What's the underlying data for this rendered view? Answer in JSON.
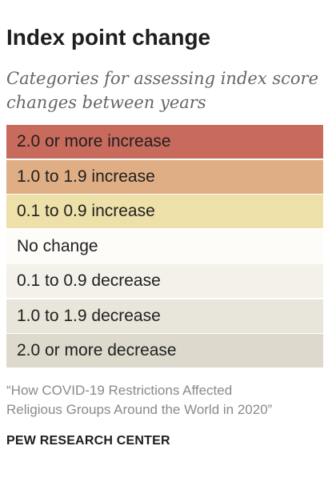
{
  "header": {
    "title": "Index point change",
    "subtitle_line1": "Categories for assessing index score",
    "subtitle_line2": "changes between years"
  },
  "legend": {
    "items": [
      {
        "label": "2.0 or more increase",
        "color": "#c86b5c"
      },
      {
        "label": "1.0 to 1.9 increase",
        "color": "#dfae84"
      },
      {
        "label": "0.1 to 0.9 increase",
        "color": "#ede0a8"
      },
      {
        "label": "No change",
        "color": "#fdfcf9"
      },
      {
        "label": "0.1 to 0.9 decrease",
        "color": "#f3f1ea"
      },
      {
        "label": "1.0 to 1.9 decrease",
        "color": "#e8e5da"
      },
      {
        "label": "2.0 or more decrease",
        "color": "#dddacd"
      }
    ]
  },
  "footer": {
    "source_line1": "“How COVID-19 Restrictions Affected",
    "source_line2": "Religious Groups Around the World in 2020”",
    "brand": "PEW RESEARCH CENTER"
  }
}
